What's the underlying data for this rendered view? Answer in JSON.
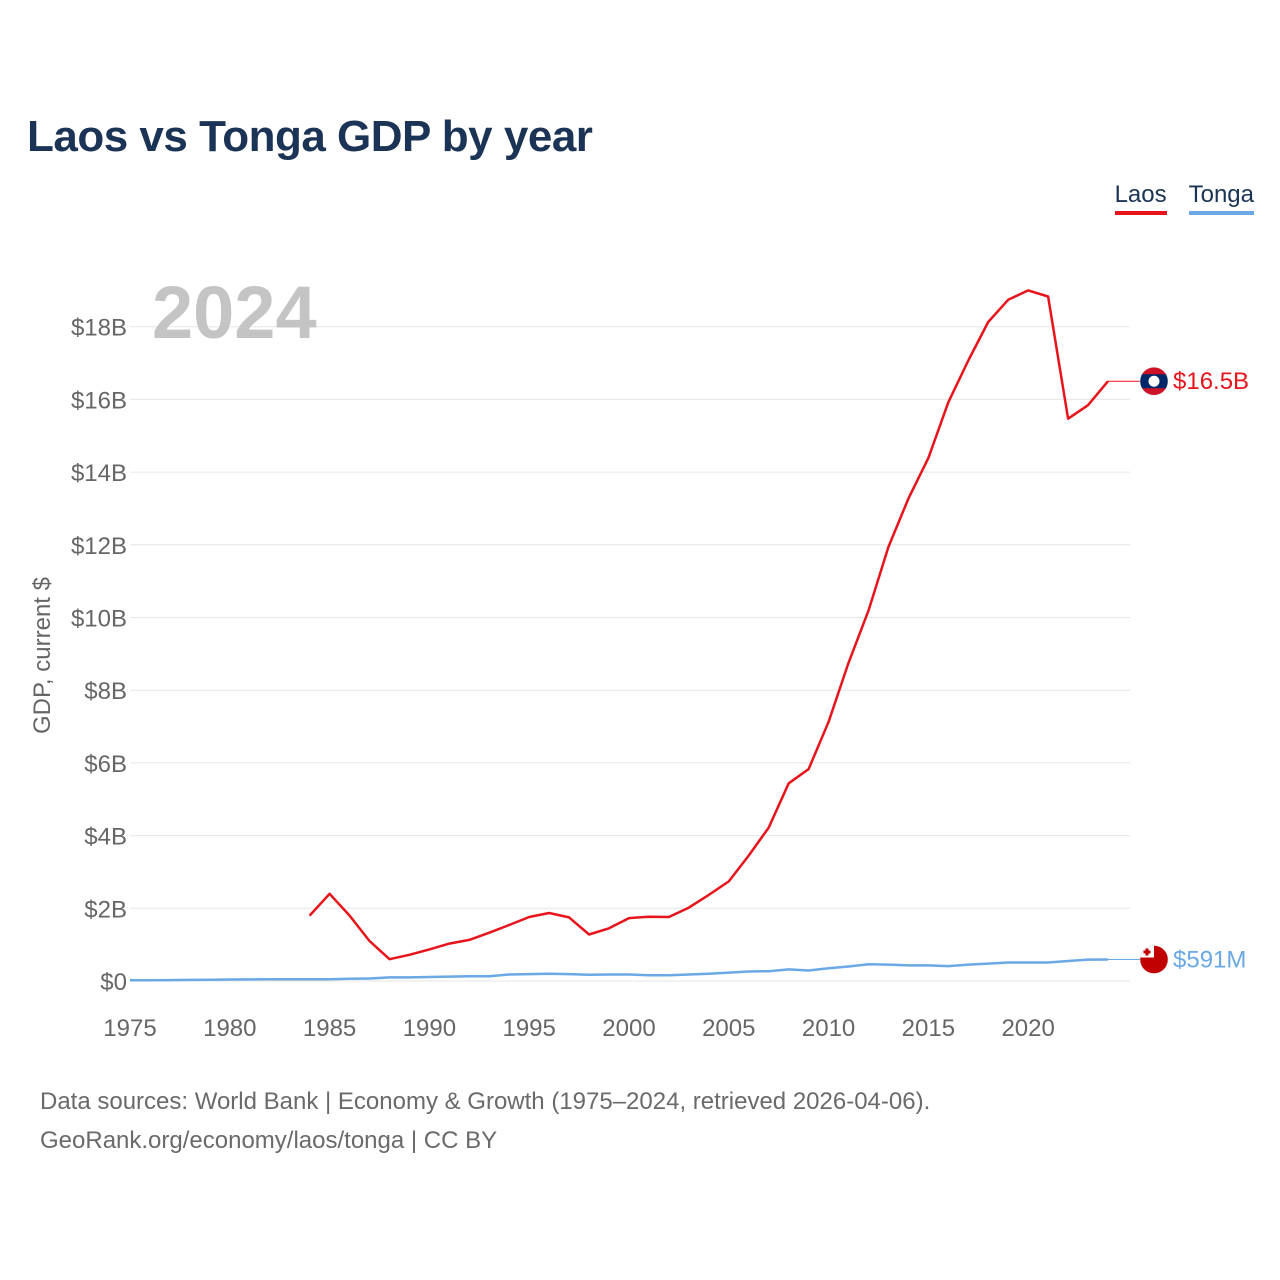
{
  "title": "Laos vs Tonga GDP by year",
  "legend": {
    "laos": "Laos",
    "tonga": "Tonga"
  },
  "footer": {
    "line1": "Data sources: World Bank | Economy & Growth (1975–2024, retrieved 2026-04-06).",
    "line2": "GeoRank.org/economy/laos/tonga | CC BY"
  },
  "colors": {
    "laos": "#e8141c",
    "tonga": "#6aa8e6",
    "grid": "#e6e6e6",
    "axis_text": "#666666",
    "year_watermark": "#c4c4c4"
  },
  "chart_data": {
    "type": "line",
    "title": "Laos vs Tonga GDP by year",
    "xlabel": "",
    "ylabel": "GDP, current $",
    "xlim": [
      1975,
      2024
    ],
    "ylim": [
      0,
      19
    ],
    "y_unit": "billion USD",
    "year_watermark": "2024",
    "x_ticks": [
      {
        "value": 1975,
        "label": "1975"
      },
      {
        "value": 1980,
        "label": "1980"
      },
      {
        "value": 1985,
        "label": "1985"
      },
      {
        "value": 1990,
        "label": "1990"
      },
      {
        "value": 1995,
        "label": "1995"
      },
      {
        "value": 2000,
        "label": "2000"
      },
      {
        "value": 2005,
        "label": "2005"
      },
      {
        "value": 2010,
        "label": "2010"
      },
      {
        "value": 2015,
        "label": "2015"
      },
      {
        "value": 2020,
        "label": "2020"
      }
    ],
    "y_ticks": [
      {
        "value": 0,
        "label": "$0"
      },
      {
        "value": 2,
        "label": "$2B"
      },
      {
        "value": 4,
        "label": "$4B"
      },
      {
        "value": 6,
        "label": "$6B"
      },
      {
        "value": 8,
        "label": "$8B"
      },
      {
        "value": 10,
        "label": "$10B"
      },
      {
        "value": 12,
        "label": "$12B"
      },
      {
        "value": 14,
        "label": "$14B"
      },
      {
        "value": 16,
        "label": "$16B"
      },
      {
        "value": 18,
        "label": "$18B"
      }
    ],
    "series": [
      {
        "name": "Laos",
        "color": "#e8141c",
        "end_label": "$16.5B",
        "end_icon": "laos-flag-icon",
        "x": [
          1984,
          1985,
          1986,
          1987,
          1988,
          1989,
          1990,
          1991,
          1992,
          1993,
          1994,
          1995,
          1996,
          1997,
          1998,
          1999,
          2000,
          2001,
          2002,
          2003,
          2004,
          2005,
          2006,
          2007,
          2008,
          2009,
          2010,
          2011,
          2012,
          2013,
          2014,
          2015,
          2016,
          2017,
          2018,
          2019,
          2020,
          2021,
          2022,
          2023,
          2024
        ],
        "y": [
          1.8,
          2.4,
          1.8,
          1.1,
          0.6,
          0.72,
          0.87,
          1.03,
          1.13,
          1.33,
          1.54,
          1.76,
          1.87,
          1.75,
          1.28,
          1.45,
          1.73,
          1.77,
          1.76,
          2.02,
          2.37,
          2.74,
          3.45,
          4.22,
          5.44,
          5.83,
          7.13,
          8.75,
          10.19,
          11.94,
          13.27,
          14.39,
          15.92,
          17.07,
          18.13,
          18.74,
          19.0,
          18.83,
          15.47,
          15.84,
          16.5
        ]
      },
      {
        "name": "Tonga",
        "color": "#6aa8e6",
        "end_label": "$591M",
        "end_icon": "tonga-flag-icon",
        "x": [
          1975,
          1976,
          1977,
          1978,
          1979,
          1980,
          1981,
          1982,
          1983,
          1984,
          1985,
          1986,
          1987,
          1988,
          1989,
          1990,
          1991,
          1992,
          1993,
          1994,
          1995,
          1996,
          1997,
          1998,
          1999,
          2000,
          2001,
          2002,
          2003,
          2004,
          2005,
          2006,
          2007,
          2008,
          2009,
          2010,
          2011,
          2012,
          2013,
          2014,
          2015,
          2016,
          2017,
          2018,
          2019,
          2020,
          2021,
          2022,
          2023,
          2024
        ],
        "y": [
          0.02,
          0.02,
          0.025,
          0.03,
          0.035,
          0.04,
          0.045,
          0.05,
          0.05,
          0.05,
          0.05,
          0.06,
          0.07,
          0.1,
          0.1,
          0.11,
          0.12,
          0.13,
          0.13,
          0.18,
          0.19,
          0.2,
          0.19,
          0.17,
          0.18,
          0.18,
          0.16,
          0.16,
          0.18,
          0.2,
          0.23,
          0.26,
          0.27,
          0.32,
          0.29,
          0.35,
          0.4,
          0.46,
          0.45,
          0.43,
          0.43,
          0.41,
          0.45,
          0.48,
          0.51,
          0.51,
          0.51,
          0.55,
          0.59,
          0.591
        ]
      }
    ]
  }
}
